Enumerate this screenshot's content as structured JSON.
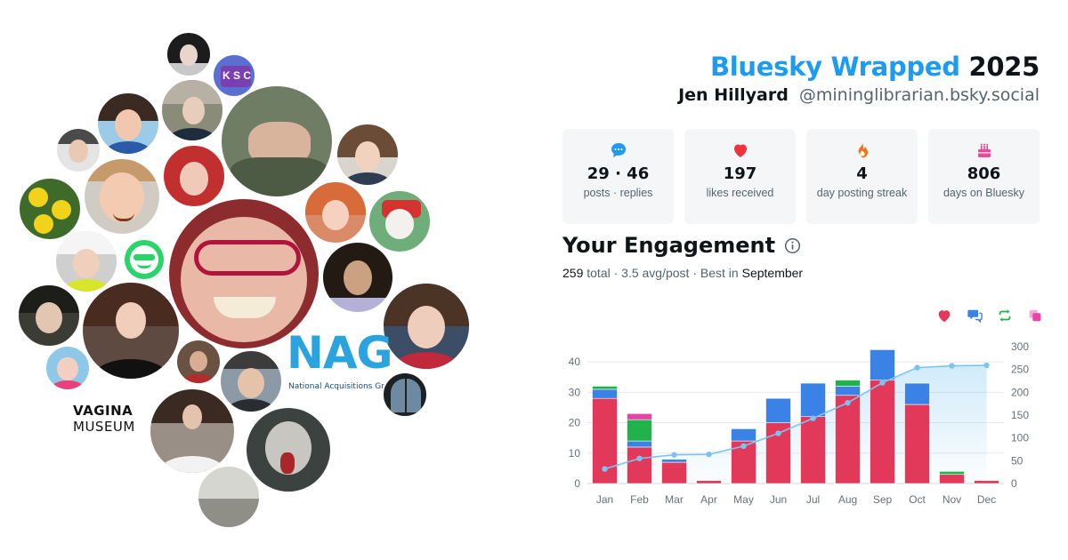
{
  "header": {
    "brand": "Bluesky Wrapped",
    "year": "2025",
    "name": "Jen Hillyard",
    "handle": "@mininglibrarian.bsky.social"
  },
  "stats": [
    {
      "icon": "chat-bubble-icon",
      "value": "29 · 46",
      "label": "posts · replies",
      "color": "#1d9bf0"
    },
    {
      "icon": "heart-icon",
      "value": "197",
      "label": "likes received",
      "color": "#ef3340"
    },
    {
      "icon": "flame-icon",
      "value": "4",
      "label": "day posting streak",
      "color": "#f97316"
    },
    {
      "icon": "cake-icon",
      "value": "806",
      "label": "days on Bluesky",
      "color": "#ec4899"
    }
  ],
  "engagement": {
    "title": "Your Engagement",
    "total": "259",
    "total_word": "total",
    "sep1": "·",
    "avg": "3.5 avg/post",
    "sep2": "·",
    "best_prefix": "Best in",
    "best_month": "September"
  },
  "cluster_logos": {
    "nag_big": "NAG",
    "nag_small": "National Acquisitions Group",
    "museum_line1": "VAGINA",
    "museum_line2": "MUSEUM",
    "badge": "K S C"
  },
  "colors": {
    "likes": "#e2385a",
    "replies": "#3b82e6",
    "reposts": "#22b24c",
    "quotes": "#e844a8",
    "cumulative": "#7cc4f0"
  },
  "chart_data": {
    "type": "bar",
    "stacked": true,
    "categories": [
      "Jan",
      "Feb",
      "Mar",
      "Apr",
      "May",
      "Jun",
      "Jul",
      "Aug",
      "Sep",
      "Oct",
      "Nov",
      "Dec"
    ],
    "series": [
      {
        "name": "likes",
        "values": [
          28,
          12,
          7,
          1,
          14,
          20,
          22,
          29,
          34,
          26,
          3,
          1
        ]
      },
      {
        "name": "replies",
        "values": [
          3,
          2,
          1,
          0,
          4,
          8,
          11,
          3,
          10,
          7,
          0,
          0
        ]
      },
      {
        "name": "reposts",
        "values": [
          1,
          7,
          0,
          0,
          0,
          0,
          0,
          2,
          0,
          0,
          1,
          0
        ]
      },
      {
        "name": "quotes",
        "values": [
          0,
          2,
          0,
          0,
          0,
          0,
          0,
          0,
          0,
          0,
          0,
          0
        ]
      }
    ],
    "cumulative": {
      "name": "cumulative",
      "axis": "right",
      "values": [
        32,
        55,
        63,
        64,
        82,
        110,
        143,
        177,
        221,
        254,
        258,
        259
      ]
    },
    "yticks_left": [
      0,
      10,
      20,
      30,
      40
    ],
    "yticks_right": [
      0,
      50,
      100,
      150,
      200,
      250,
      300
    ],
    "ylim_left": [
      0,
      45
    ],
    "ylim_right": [
      0,
      300
    ],
    "grid": true
  }
}
